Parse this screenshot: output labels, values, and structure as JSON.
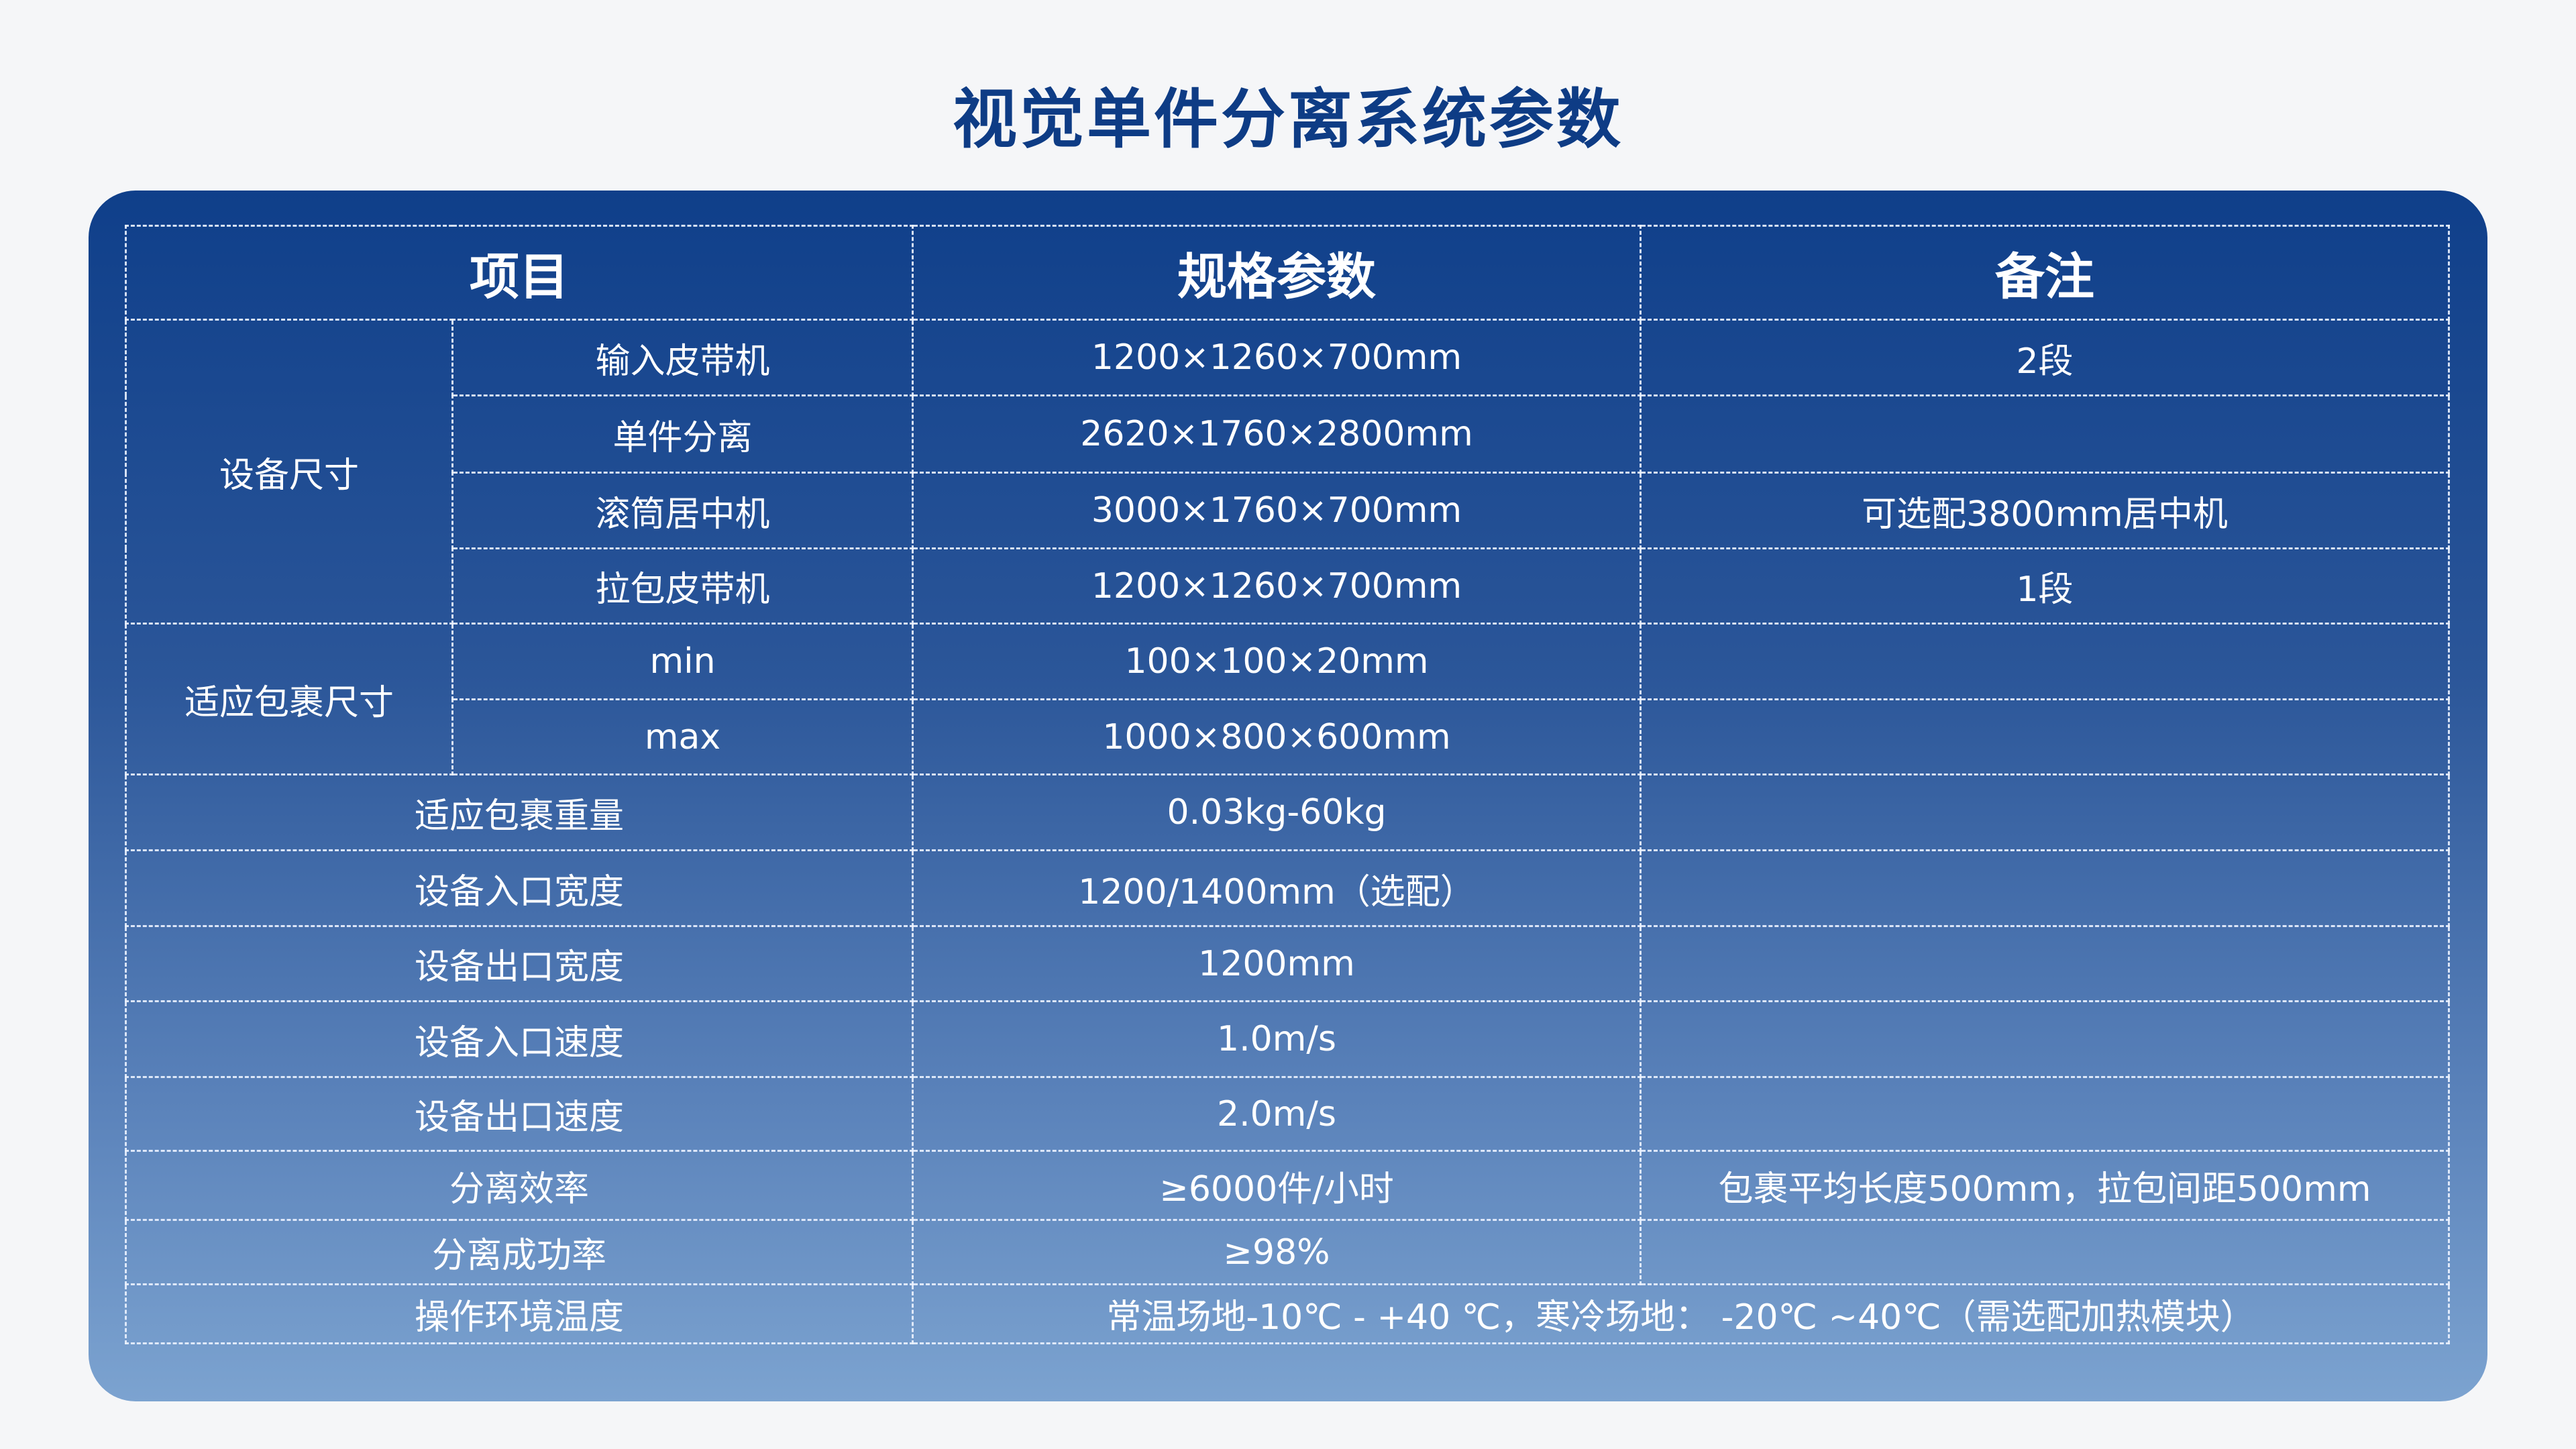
{
  "title": "视觉单件分离系统参数",
  "headers": [
    "项目",
    "规格参数",
    "备注"
  ],
  "groups": {
    "device_size": {
      "label": "设备尺寸",
      "rows": [
        {
          "item": "输入皮带机",
          "spec": "1200×1260×700mm",
          "note": "2段"
        },
        {
          "item": "单件分离",
          "spec": "2620×1760×2800mm",
          "note": ""
        },
        {
          "item": "滚筒居中机",
          "spec": "3000×1760×700mm",
          "note": "可选配3800mm居中机"
        },
        {
          "item": "拉包皮带机",
          "spec": "1200×1260×700mm",
          "note": "1段"
        }
      ]
    },
    "parcel_size": {
      "label": "适应包裹尺寸",
      "rows": [
        {
          "item": "min",
          "spec": "100×100×20mm",
          "note": ""
        },
        {
          "item": "max",
          "spec": "1000×800×600mm",
          "note": ""
        }
      ]
    }
  },
  "rows": [
    {
      "item": "适应包裹重量",
      "spec": "0.03kg-60kg",
      "note": ""
    },
    {
      "item": "设备入口宽度",
      "spec": "1200/1400mm（选配）",
      "note": ""
    },
    {
      "item": "设备出口宽度",
      "spec": "1200mm",
      "note": ""
    },
    {
      "item": "设备入口速度",
      "spec": "1.0m/s",
      "note": ""
    },
    {
      "item": "设备出口速度",
      "spec": "2.0m/s",
      "note": ""
    },
    {
      "item": "分离效率",
      "spec": "≥6000件/小时",
      "note": "包裹平均长度500mm，拉包间距500mm"
    },
    {
      "item": "分离成功率",
      "spec": "≥98%",
      "note": ""
    }
  ],
  "last_row": {
    "item": "操作环境温度",
    "spec": "常温场地-10℃ - +40 ℃，寒冷场地： -20℃ ~40℃（需选配加热模块）"
  },
  "colors": {
    "title": "#0e3c85",
    "panel_top": "#0f3f8a",
    "panel_bottom": "#7ca3d0",
    "background": "#f5f6f8"
  }
}
